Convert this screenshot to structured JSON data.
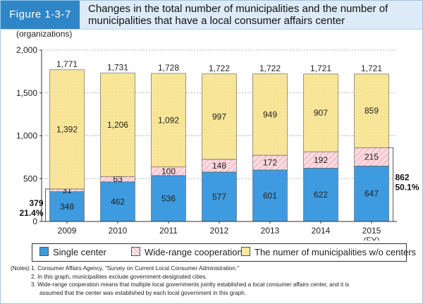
{
  "figure": {
    "label": "Figure 1-3-7",
    "title_line1": "Changes in the total number of municipalities and the number of",
    "title_line2": "municipalities that have a local consumer affairs center"
  },
  "chart_data": {
    "type": "bar",
    "stacked": true,
    "ylabel": "(organizations)",
    "xlabel": "",
    "ylim": [
      0,
      2000
    ],
    "yticks": [
      0,
      500,
      1000,
      1500,
      2000
    ],
    "ytick_labels": [
      "0",
      "500",
      "1,000",
      "1,500",
      "2,000"
    ],
    "categories": [
      "2009",
      "2010",
      "2011",
      "2012",
      "2013",
      "2014",
      "2015"
    ],
    "x_unit_label": "(FY)",
    "series": [
      {
        "name": "Single center",
        "color": "#3f9be0",
        "values": [
          348,
          462,
          536,
          577,
          601,
          622,
          647
        ],
        "labels": [
          "348",
          "462",
          "536",
          "577",
          "601",
          "622",
          "647"
        ]
      },
      {
        "name": "Wide-range cooperation",
        "color": "#f6c7cf",
        "values": [
          31,
          63,
          100,
          148,
          172,
          192,
          215
        ],
        "labels": [
          "31",
          "63",
          "100",
          "148",
          "172",
          "192",
          "215"
        ]
      },
      {
        "name": "The numer of municipalities w/o centers",
        "color": "#fbeaa1",
        "values": [
          1392,
          1206,
          1092,
          997,
          949,
          907,
          859
        ],
        "labels": [
          "1,392",
          "1,206",
          "1,092",
          "997",
          "949",
          "907",
          "859"
        ]
      }
    ],
    "totals": [
      1771,
      1731,
      1728,
      1722,
      1722,
      1721,
      1721
    ],
    "total_labels": [
      "1,771",
      "1,731",
      "1,728",
      "1,722",
      "1,722",
      "1,721",
      "1,721"
    ],
    "annotations": [
      {
        "category": "2009",
        "value_label": "379",
        "percent_label": "21.4%",
        "side": "left"
      },
      {
        "category": "2015",
        "value_label": "862",
        "percent_label": "50.1%",
        "side": "right"
      }
    ]
  },
  "notes": {
    "prefix": "(Notes)",
    "line1": "1. Consumer Affairs Agency, \"Survey on Current Local Consumer Administration.\"",
    "line2": "2. In this graph, municipalities exclude government-designated cities.",
    "line3": "3. Wide-range cooperation means that multiple local governments jointly established a local consumer affairs center, and it is",
    "line4": "assumed that the center was established by each local government in this graph."
  }
}
